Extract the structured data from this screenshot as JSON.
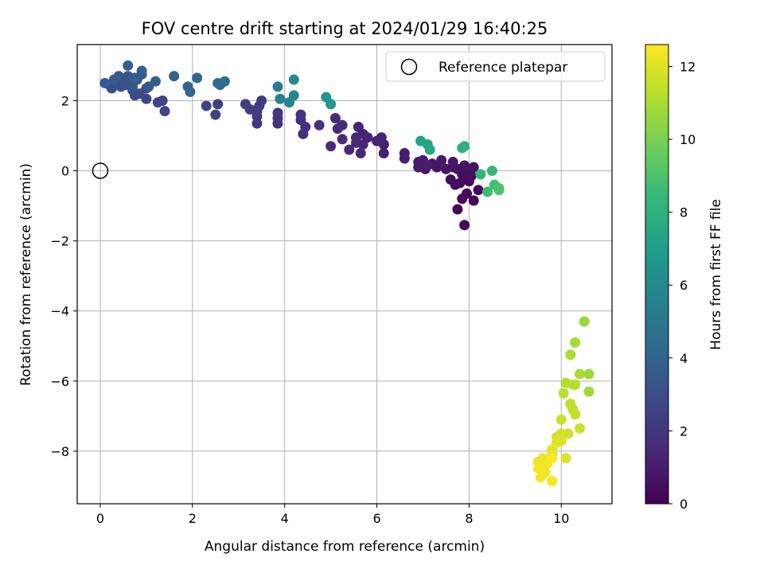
{
  "chart_data": {
    "type": "scatter",
    "title": "FOV centre drift starting at 2024/01/29 16:40:25",
    "xlabel": "Angular distance from reference (arcmin)",
    "ylabel": "Rotation from reference (arcmin)",
    "xlim": [
      -0.5,
      11.1
    ],
    "ylim": [
      -9.5,
      3.6
    ],
    "x_ticks": [
      0,
      2,
      4,
      6,
      8,
      10
    ],
    "y_ticks": [
      -8,
      -6,
      -4,
      -2,
      0,
      2
    ],
    "grid": true,
    "legend": {
      "placement": "top-right",
      "entries": [
        "Reference platepar"
      ]
    },
    "reference_point": {
      "x": 0,
      "y": 0,
      "label": "Reference platepar"
    },
    "colorbar": {
      "label": "Hours from first FF file",
      "colormap": "viridis",
      "range": [
        0,
        12.6
      ],
      "ticks": [
        0,
        2,
        4,
        6,
        8,
        10,
        12
      ]
    },
    "colormap_stops": [
      "#440154",
      "#482878",
      "#3e4989",
      "#31688e",
      "#26828e",
      "#1f9e89",
      "#35b779",
      "#6ece58",
      "#b5de2b",
      "#fde725"
    ],
    "points": [
      {
        "x": 7.9,
        "y": -1.55,
        "h": 0.1
      },
      {
        "x": 7.75,
        "y": -1.1,
        "h": 0.15
      },
      {
        "x": 8.1,
        "y": -0.85,
        "h": 0.2
      },
      {
        "x": 7.85,
        "y": -0.8,
        "h": 0.2
      },
      {
        "x": 7.95,
        "y": -0.65,
        "h": 0.25
      },
      {
        "x": 8.2,
        "y": -0.55,
        "h": 0.3
      },
      {
        "x": 7.7,
        "y": -0.4,
        "h": 0.3
      },
      {
        "x": 7.8,
        "y": -0.35,
        "h": 0.35
      },
      {
        "x": 8.0,
        "y": -0.3,
        "h": 0.35
      },
      {
        "x": 7.6,
        "y": -0.25,
        "h": 0.4
      },
      {
        "x": 7.9,
        "y": -0.2,
        "h": 0.4
      },
      {
        "x": 8.05,
        "y": -0.15,
        "h": 0.45
      },
      {
        "x": 7.85,
        "y": -0.1,
        "h": 0.5
      },
      {
        "x": 7.95,
        "y": 0.0,
        "h": 0.5
      },
      {
        "x": 7.75,
        "y": 0.05,
        "h": 0.55
      },
      {
        "x": 8.1,
        "y": 0.1,
        "h": 0.6
      },
      {
        "x": 7.9,
        "y": 0.15,
        "h": 0.6
      },
      {
        "x": 7.65,
        "y": 0.1,
        "h": 0.65
      },
      {
        "x": 7.5,
        "y": 0.05,
        "h": 0.7
      },
      {
        "x": 7.3,
        "y": 0.1,
        "h": 0.7
      },
      {
        "x": 7.2,
        "y": 0.2,
        "h": 0.75
      },
      {
        "x": 7.4,
        "y": 0.3,
        "h": 0.8
      },
      {
        "x": 7.65,
        "y": 0.25,
        "h": 0.8
      },
      {
        "x": 7.05,
        "y": 0.05,
        "h": 0.85
      },
      {
        "x": 6.9,
        "y": 0.1,
        "h": 0.9
      },
      {
        "x": 6.9,
        "y": 0.25,
        "h": 0.9
      },
      {
        "x": 7.0,
        "y": 0.3,
        "h": 0.95
      },
      {
        "x": 7.1,
        "y": 0.15,
        "h": 1.0
      },
      {
        "x": 6.6,
        "y": 0.35,
        "h": 1.0
      },
      {
        "x": 6.6,
        "y": 0.5,
        "h": 1.05
      },
      {
        "x": 6.15,
        "y": 0.5,
        "h": 1.1
      },
      {
        "x": 6.15,
        "y": 0.75,
        "h": 1.1
      },
      {
        "x": 6.1,
        "y": 0.95,
        "h": 1.15
      },
      {
        "x": 6.0,
        "y": 0.85,
        "h": 1.2
      },
      {
        "x": 5.7,
        "y": 1.05,
        "h": 1.2
      },
      {
        "x": 5.8,
        "y": 0.95,
        "h": 1.25
      },
      {
        "x": 5.6,
        "y": 1.25,
        "h": 1.3
      },
      {
        "x": 5.7,
        "y": 0.75,
        "h": 1.3
      },
      {
        "x": 5.65,
        "y": 0.5,
        "h": 1.35
      },
      {
        "x": 5.55,
        "y": 0.8,
        "h": 1.4
      },
      {
        "x": 5.4,
        "y": 0.6,
        "h": 1.4
      },
      {
        "x": 5.55,
        "y": 0.95,
        "h": 1.45
      },
      {
        "x": 5.25,
        "y": 0.9,
        "h": 1.5
      },
      {
        "x": 5.15,
        "y": 1.2,
        "h": 1.5
      },
      {
        "x": 5.25,
        "y": 1.3,
        "h": 1.55
      },
      {
        "x": 5.1,
        "y": 1.5,
        "h": 1.6
      },
      {
        "x": 5.0,
        "y": 0.7,
        "h": 1.65
      },
      {
        "x": 4.75,
        "y": 1.3,
        "h": 1.7
      },
      {
        "x": 4.45,
        "y": 1.25,
        "h": 1.75
      },
      {
        "x": 4.4,
        "y": 1.05,
        "h": 1.8
      },
      {
        "x": 4.35,
        "y": 1.45,
        "h": 1.8
      },
      {
        "x": 4.35,
        "y": 1.6,
        "h": 1.85
      },
      {
        "x": 3.85,
        "y": 1.35,
        "h": 1.9
      },
      {
        "x": 3.85,
        "y": 1.5,
        "h": 1.95
      },
      {
        "x": 3.85,
        "y": 1.65,
        "h": 2.0
      },
      {
        "x": 3.4,
        "y": 1.35,
        "h": 2.05
      },
      {
        "x": 3.4,
        "y": 1.55,
        "h": 2.1
      },
      {
        "x": 3.4,
        "y": 1.7,
        "h": 2.15
      },
      {
        "x": 3.45,
        "y": 1.85,
        "h": 2.2
      },
      {
        "x": 3.5,
        "y": 2.0,
        "h": 2.25
      },
      {
        "x": 3.25,
        "y": 1.75,
        "h": 2.3
      },
      {
        "x": 3.15,
        "y": 1.9,
        "h": 2.35
      },
      {
        "x": 2.55,
        "y": 1.9,
        "h": 2.4
      },
      {
        "x": 2.5,
        "y": 1.6,
        "h": 2.45
      },
      {
        "x": 2.3,
        "y": 1.85,
        "h": 2.5
      },
      {
        "x": 1.4,
        "y": 1.7,
        "h": 2.55
      },
      {
        "x": 1.35,
        "y": 2.0,
        "h": 2.6
      },
      {
        "x": 1.25,
        "y": 1.95,
        "h": 2.65
      },
      {
        "x": 1.0,
        "y": 2.05,
        "h": 2.7
      },
      {
        "x": 1.0,
        "y": 2.35,
        "h": 2.75
      },
      {
        "x": 0.85,
        "y": 2.2,
        "h": 2.8
      },
      {
        "x": 0.75,
        "y": 2.15,
        "h": 2.85
      },
      {
        "x": 0.7,
        "y": 2.3,
        "h": 2.9
      },
      {
        "x": 0.2,
        "y": 2.45,
        "h": 2.95
      },
      {
        "x": 0.25,
        "y": 2.35,
        "h": 3.0
      },
      {
        "x": 0.35,
        "y": 2.55,
        "h": 3.05
      },
      {
        "x": 0.45,
        "y": 2.4,
        "h": 3.1
      },
      {
        "x": 0.5,
        "y": 2.6,
        "h": 3.15
      },
      {
        "x": 0.55,
        "y": 2.45,
        "h": 3.2
      },
      {
        "x": 0.6,
        "y": 2.7,
        "h": 3.25
      },
      {
        "x": 0.65,
        "y": 2.55,
        "h": 3.3
      },
      {
        "x": 0.7,
        "y": 2.4,
        "h": 3.35
      },
      {
        "x": 0.8,
        "y": 2.6,
        "h": 3.4
      },
      {
        "x": 0.9,
        "y": 2.75,
        "h": 3.45
      },
      {
        "x": 1.05,
        "y": 2.4,
        "h": 3.5
      },
      {
        "x": 0.3,
        "y": 2.6,
        "h": 3.55
      },
      {
        "x": 0.1,
        "y": 2.5,
        "h": 3.6
      },
      {
        "x": 0.4,
        "y": 2.7,
        "h": 3.65
      },
      {
        "x": 0.6,
        "y": 3.0,
        "h": 3.7
      },
      {
        "x": 0.75,
        "y": 2.65,
        "h": 3.75
      },
      {
        "x": 0.9,
        "y": 2.85,
        "h": 3.8
      },
      {
        "x": 1.2,
        "y": 2.55,
        "h": 3.85
      },
      {
        "x": 1.6,
        "y": 2.7,
        "h": 3.95
      },
      {
        "x": 1.9,
        "y": 2.4,
        "h": 4.05
      },
      {
        "x": 1.95,
        "y": 2.25,
        "h": 4.1
      },
      {
        "x": 2.1,
        "y": 2.65,
        "h": 4.2
      },
      {
        "x": 2.55,
        "y": 2.5,
        "h": 4.4
      },
      {
        "x": 2.6,
        "y": 2.45,
        "h": 4.5
      },
      {
        "x": 2.7,
        "y": 2.55,
        "h": 4.6
      },
      {
        "x": 3.85,
        "y": 2.4,
        "h": 5.4
      },
      {
        "x": 3.9,
        "y": 2.05,
        "h": 5.6
      },
      {
        "x": 4.1,
        "y": 1.95,
        "h": 5.8
      },
      {
        "x": 4.2,
        "y": 2.15,
        "h": 5.9
      },
      {
        "x": 4.2,
        "y": 2.6,
        "h": 6.0
      },
      {
        "x": 4.9,
        "y": 2.1,
        "h": 6.5
      },
      {
        "x": 5.0,
        "y": 1.9,
        "h": 6.6
      },
      {
        "x": 6.95,
        "y": 0.85,
        "h": 7.2
      },
      {
        "x": 7.1,
        "y": 0.75,
        "h": 7.4
      },
      {
        "x": 7.15,
        "y": 0.6,
        "h": 7.5
      },
      {
        "x": 7.85,
        "y": 0.65,
        "h": 7.9
      },
      {
        "x": 7.9,
        "y": 0.7,
        "h": 8.0
      },
      {
        "x": 8.25,
        "y": -0.1,
        "h": 8.3
      },
      {
        "x": 8.5,
        "y": 0.0,
        "h": 8.4
      },
      {
        "x": 8.4,
        "y": -0.6,
        "h": 8.6
      },
      {
        "x": 8.55,
        "y": -0.4,
        "h": 8.8
      },
      {
        "x": 8.65,
        "y": -0.5,
        "h": 8.9
      },
      {
        "x": 8.65,
        "y": -0.55,
        "h": 9.0
      },
      {
        "x": 10.5,
        "y": -4.3,
        "h": 10.6
      },
      {
        "x": 10.6,
        "y": -5.8,
        "h": 10.7
      },
      {
        "x": 10.6,
        "y": -6.3,
        "h": 10.8
      },
      {
        "x": 10.3,
        "y": -4.9,
        "h": 10.9
      },
      {
        "x": 10.2,
        "y": -5.25,
        "h": 11.0
      },
      {
        "x": 10.4,
        "y": -5.8,
        "h": 11.0
      },
      {
        "x": 10.1,
        "y": -6.05,
        "h": 11.1
      },
      {
        "x": 10.25,
        "y": -6.1,
        "h": 11.2
      },
      {
        "x": 10.3,
        "y": -6.1,
        "h": 11.2
      },
      {
        "x": 10.05,
        "y": -6.35,
        "h": 11.3
      },
      {
        "x": 10.2,
        "y": -6.65,
        "h": 11.3
      },
      {
        "x": 10.25,
        "y": -6.8,
        "h": 11.4
      },
      {
        "x": 10.3,
        "y": -6.95,
        "h": 11.5
      },
      {
        "x": 10.0,
        "y": -7.1,
        "h": 11.6
      },
      {
        "x": 10.4,
        "y": -7.35,
        "h": 11.6
      },
      {
        "x": 10.15,
        "y": -7.5,
        "h": 11.7
      },
      {
        "x": 10.0,
        "y": -7.5,
        "h": 11.8
      },
      {
        "x": 9.9,
        "y": -7.6,
        "h": 11.8
      },
      {
        "x": 10.0,
        "y": -7.7,
        "h": 11.9
      },
      {
        "x": 9.9,
        "y": -7.75,
        "h": 12.0
      },
      {
        "x": 10.1,
        "y": -8.2,
        "h": 12.0
      },
      {
        "x": 9.8,
        "y": -7.95,
        "h": 12.1
      },
      {
        "x": 9.8,
        "y": -8.1,
        "h": 12.1
      },
      {
        "x": 9.6,
        "y": -8.2,
        "h": 12.2
      },
      {
        "x": 9.5,
        "y": -8.3,
        "h": 12.2
      },
      {
        "x": 9.55,
        "y": -8.4,
        "h": 12.3
      },
      {
        "x": 9.7,
        "y": -8.35,
        "h": 12.3
      },
      {
        "x": 9.5,
        "y": -8.5,
        "h": 12.4
      },
      {
        "x": 9.65,
        "y": -8.6,
        "h": 12.4
      },
      {
        "x": 9.55,
        "y": -8.75,
        "h": 12.5
      },
      {
        "x": 9.8,
        "y": -8.85,
        "h": 12.5
      },
      {
        "x": 9.8,
        "y": -8.2,
        "h": 12.6
      }
    ]
  }
}
